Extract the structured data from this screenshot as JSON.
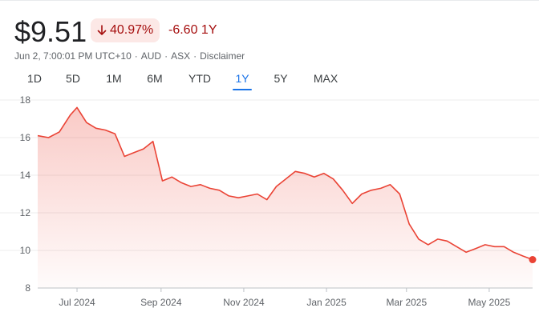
{
  "quote": {
    "price": "$9.51",
    "change_pct": "40.97%",
    "change_abs": "-6.60",
    "period_label": "1Y",
    "meta": [
      "Jun 2, 7:00:01 PM UTC+10",
      "AUD",
      "ASX",
      "Disclaimer"
    ],
    "meta_sep": "·"
  },
  "colors": {
    "down": "#a50e0e",
    "line": "#ea4335",
    "active_tab": "#1a73e8"
  },
  "tabs": [
    "1D",
    "5D",
    "1M",
    "6M",
    "YTD",
    "1Y",
    "5Y",
    "MAX"
  ],
  "active_tab": "1Y",
  "chart_data": {
    "type": "area",
    "x_tick_labels": [
      "Jul 2024",
      "Sep 2024",
      "Nov 2024",
      "Jan 2025",
      "Mar 2025",
      "May 2025"
    ],
    "y_tick_labels": [
      "18",
      "16",
      "14",
      "12",
      "10",
      "8"
    ],
    "ylim": [
      8,
      18
    ],
    "xlim": [
      "2024-06-02",
      "2025-06-02"
    ],
    "x": [
      "2024-06-02",
      "2024-06-10",
      "2024-06-18",
      "2024-06-26",
      "2024-07-01",
      "2024-07-08",
      "2024-07-15",
      "2024-07-22",
      "2024-07-29",
      "2024-08-05",
      "2024-08-12",
      "2024-08-19",
      "2024-08-26",
      "2024-09-02",
      "2024-09-09",
      "2024-09-16",
      "2024-09-23",
      "2024-09-30",
      "2024-10-07",
      "2024-10-14",
      "2024-10-21",
      "2024-10-28",
      "2024-11-04",
      "2024-11-11",
      "2024-11-18",
      "2024-11-25",
      "2024-12-02",
      "2024-12-09",
      "2024-12-16",
      "2024-12-23",
      "2024-12-30",
      "2025-01-06",
      "2025-01-13",
      "2025-01-20",
      "2025-01-27",
      "2025-02-03",
      "2025-02-10",
      "2025-02-17",
      "2025-02-24",
      "2025-03-03",
      "2025-03-10",
      "2025-03-17",
      "2025-03-24",
      "2025-03-31",
      "2025-04-07",
      "2025-04-14",
      "2025-04-21",
      "2025-04-28",
      "2025-05-05",
      "2025-05-12",
      "2025-05-19",
      "2025-05-26",
      "2025-06-02"
    ],
    "values": [
      16.1,
      16.0,
      16.3,
      17.2,
      17.6,
      16.8,
      16.5,
      16.4,
      16.2,
      15.0,
      15.2,
      15.4,
      15.8,
      13.7,
      13.9,
      13.6,
      13.4,
      13.5,
      13.3,
      13.2,
      12.9,
      12.8,
      12.9,
      13.0,
      12.7,
      13.4,
      13.8,
      14.2,
      14.1,
      13.9,
      14.1,
      13.8,
      13.2,
      12.5,
      13.0,
      13.2,
      13.3,
      13.5,
      13.0,
      11.4,
      10.6,
      10.3,
      10.6,
      10.5,
      10.2,
      9.9,
      10.1,
      10.3,
      10.2,
      10.2,
      9.9,
      9.7,
      9.51
    ]
  }
}
